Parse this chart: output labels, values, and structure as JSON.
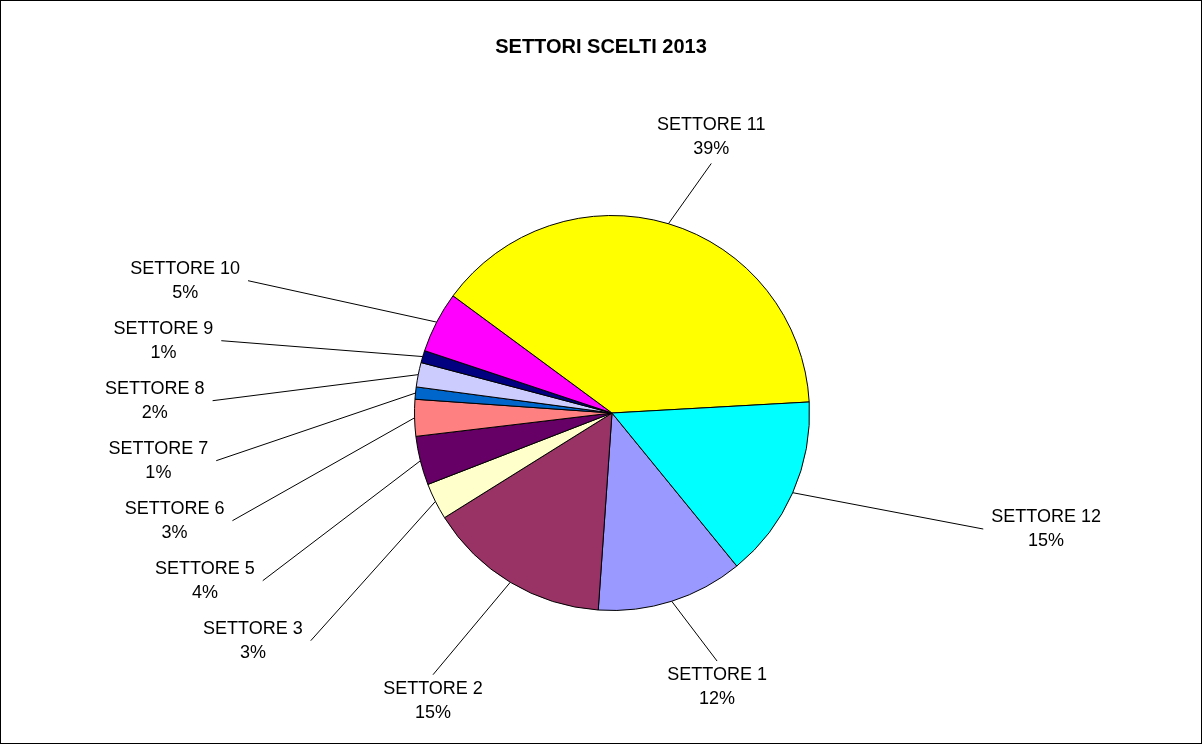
{
  "chart_data": {
    "type": "pie",
    "title": "SETTORI SCELTI 2013",
    "categories": [
      "SETTORE 1",
      "SETTORE 2",
      "SETTORE 3",
      "SETTORE 5",
      "SETTORE 6",
      "SETTORE 7",
      "SETTORE 8",
      "SETTORE 9",
      "SETTORE 10",
      "SETTORE 11",
      "SETTORE 12"
    ],
    "values": [
      12,
      15,
      3,
      4,
      3,
      1,
      2,
      1,
      5,
      39,
      15
    ],
    "value_labels": [
      "12%",
      "15%",
      "3%",
      "4%",
      "3%",
      "1%",
      "2%",
      "1%",
      "5%",
      "39%",
      "15%"
    ],
    "colors": [
      "#9999ff",
      "#993366",
      "#ffffcc",
      "#660066",
      "#ff8080",
      "#0066cc",
      "#ccccff",
      "#000080",
      "#ff00ff",
      "#ffff00",
      "#00ffff"
    ],
    "legend": false
  }
}
